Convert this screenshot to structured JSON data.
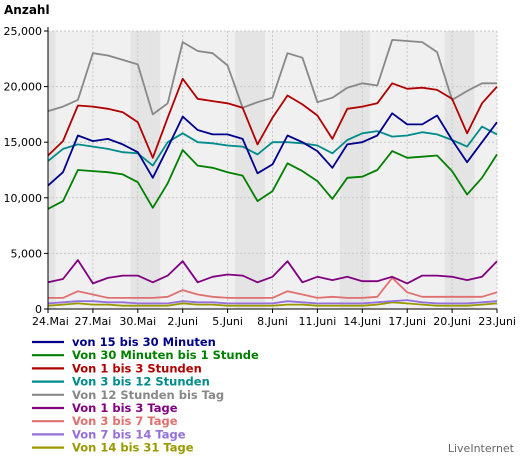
{
  "chart_data": {
    "type": "line",
    "ylabel": "Anzahl",
    "ylim": [
      0,
      25000
    ],
    "yticks": [
      0,
      5000,
      10000,
      15000,
      20000,
      25000
    ],
    "ytick_labels": [
      "0",
      "5,000",
      "10,000",
      "15,000",
      "20,000",
      "25,000"
    ],
    "grid": true,
    "credit": "LiveInternet",
    "x_tick_labels": [
      {
        "index": 0,
        "label": "24.Mai"
      },
      {
        "index": 3,
        "label": "27.Mai"
      },
      {
        "index": 6,
        "label": "30.Mai"
      },
      {
        "index": 9,
        "label": "2.Juni"
      },
      {
        "index": 12,
        "label": "5.Juni"
      },
      {
        "index": 15,
        "label": "8.Juni"
      },
      {
        "index": 18,
        "label": "11.Juni"
      },
      {
        "index": 21,
        "label": "14.Juni"
      },
      {
        "index": 24,
        "label": "17.Juni"
      },
      {
        "index": 27,
        "label": "20.Juni"
      },
      {
        "index": 30,
        "label": "23.Juni"
      }
    ],
    "series": [
      {
        "name": "von 15 bis 30 Minuten",
        "color": "#00008b",
        "values": [
          11100,
          12300,
          15600,
          15100,
          15300,
          14800,
          14100,
          11800,
          14500,
          17300,
          16100,
          15700,
          15700,
          15300,
          12200,
          13000,
          15600,
          15000,
          14200,
          12700,
          14800,
          15000,
          15600,
          17600,
          16600,
          16600,
          17400,
          15200,
          13200,
          15000,
          16800
        ]
      },
      {
        "name": "Von 30 Minuten bis 1 Stunde",
        "color": "#008000",
        "values": [
          9000,
          9700,
          12500,
          12400,
          12300,
          12100,
          11400,
          9100,
          11300,
          14300,
          12900,
          12700,
          12300,
          12000,
          9700,
          10600,
          13100,
          12400,
          11500,
          9900,
          11800,
          11900,
          12500,
          14200,
          13600,
          13700,
          13800,
          12400,
          10300,
          11800,
          13900
        ]
      },
      {
        "name": "Von 1 bis 3 Stunden",
        "color": "#b00000",
        "values": [
          13800,
          15100,
          18300,
          18200,
          18000,
          17700,
          16800,
          13600,
          17200,
          20700,
          18900,
          18700,
          18500,
          18100,
          14800,
          17200,
          19200,
          18400,
          17400,
          15300,
          18000,
          18200,
          18500,
          20300,
          19800,
          19900,
          19700,
          18900,
          15800,
          18500,
          20000
        ]
      },
      {
        "name": "Von 3 bis 12 Stunden",
        "color": "#008b8b",
        "values": [
          13300,
          14400,
          14800,
          14600,
          14400,
          14100,
          14000,
          12900,
          15000,
          15800,
          15000,
          14900,
          14700,
          14600,
          13900,
          15000,
          15000,
          14900,
          14700,
          14000,
          15200,
          15800,
          16000,
          15500,
          15600,
          15900,
          15700,
          15200,
          14600,
          16400,
          15700
        ]
      },
      {
        "name": "Von 12 Stunden bis Tag",
        "color": "#888888",
        "values": [
          17800,
          18200,
          18800,
          23000,
          22800,
          22400,
          22000,
          17500,
          18500,
          24000,
          23200,
          23000,
          21900,
          18100,
          18600,
          19000,
          23000,
          22600,
          18600,
          19000,
          19900,
          20300,
          20100,
          24200,
          24100,
          24000,
          23100,
          18800,
          19600,
          20300,
          20300
        ]
      },
      {
        "name": "Von 1 bis 3 Tage",
        "color": "#800080",
        "values": [
          2400,
          2700,
          4400,
          2300,
          2800,
          3000,
          3000,
          2400,
          3000,
          4300,
          2400,
          2900,
          3100,
          3000,
          2400,
          2900,
          4300,
          2400,
          2900,
          2600,
          2900,
          2500,
          2500,
          2900,
          2300,
          3000,
          3000,
          2900,
          2600,
          2900,
          4300
        ]
      },
      {
        "name": "Von 3 bis 7 Tage",
        "color": "#e07070",
        "values": [
          1000,
          1000,
          1600,
          1300,
          1000,
          1000,
          1000,
          1000,
          1100,
          1700,
          1300,
          1100,
          1000,
          1000,
          1000,
          1000,
          1600,
          1300,
          1000,
          1100,
          1000,
          1000,
          1100,
          2800,
          1500,
          1100,
          1100,
          1100,
          1100,
          1100,
          1500
        ]
      },
      {
        "name": "Von 7 bis 14 Tage",
        "color": "#9370db",
        "values": [
          500,
          600,
          700,
          700,
          600,
          600,
          500,
          500,
          500,
          700,
          600,
          600,
          500,
          500,
          500,
          500,
          700,
          600,
          500,
          500,
          500,
          500,
          600,
          700,
          800,
          600,
          500,
          500,
          500,
          600,
          700
        ]
      },
      {
        "name": "Von 14 bis 31 Tage",
        "color": "#9a9a00",
        "values": [
          300,
          400,
          500,
          400,
          400,
          300,
          300,
          300,
          300,
          500,
          400,
          400,
          300,
          300,
          300,
          300,
          400,
          400,
          300,
          300,
          300,
          300,
          400,
          600,
          500,
          400,
          300,
          300,
          300,
          400,
          500
        ]
      }
    ]
  }
}
